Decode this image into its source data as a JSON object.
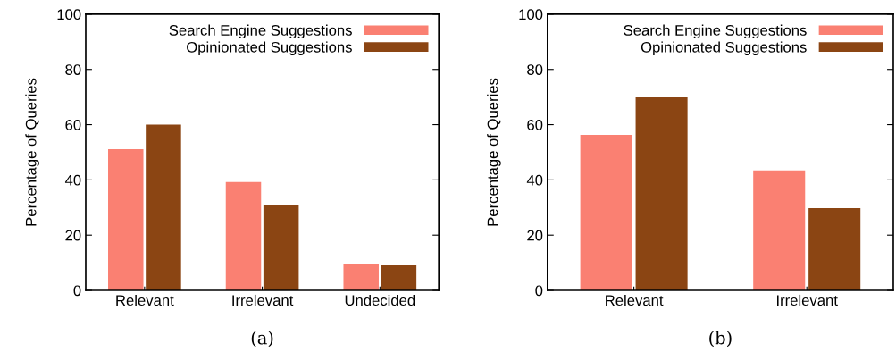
{
  "chart_data": [
    {
      "type": "bar",
      "xlabel": "(a)",
      "ylabel": "Percentage of Queries",
      "categories": [
        "Relevant",
        "Irrelevant",
        "Undecided"
      ],
      "series": [
        {
          "name": "Search Engine Suggestions",
          "color": "#fa8072",
          "values": [
            51.1,
            39.2,
            9.7
          ]
        },
        {
          "name": "Opinionated Suggestions",
          "color": "#8b4513",
          "values": [
            60,
            31.1,
            9.1
          ]
        }
      ],
      "ylim": [
        0,
        100
      ],
      "yticks": [
        0,
        20,
        40,
        60,
        80,
        100
      ],
      "legend": "top right",
      "grid": false
    },
    {
      "type": "bar",
      "xlabel": "(b)",
      "ylabel": "Percentage of Queries",
      "categories": [
        "Relevant",
        "Irrelevant"
      ],
      "series": [
        {
          "name": "Search Engine Suggestions",
          "color": "#fa8072",
          "values": [
            56.3,
            43.4
          ]
        },
        {
          "name": "Opinionated Suggestions",
          "color": "#8b4513",
          "values": [
            69.9,
            29.8
          ]
        }
      ],
      "ylim": [
        0,
        100
      ],
      "yticks": [
        0,
        20,
        40,
        60,
        80,
        100
      ],
      "legend": "top right",
      "grid": false
    }
  ]
}
